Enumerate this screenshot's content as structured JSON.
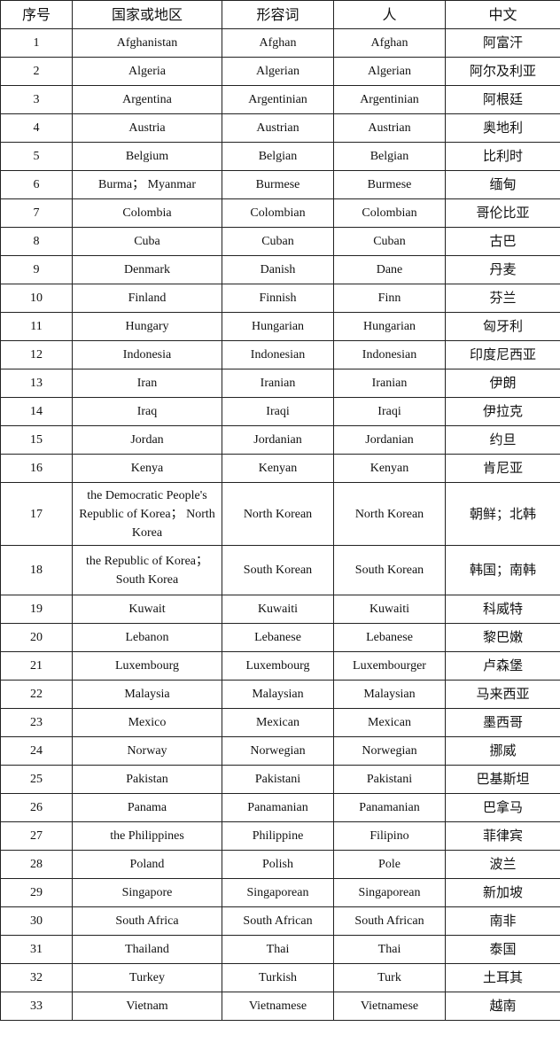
{
  "headers": [
    "序号",
    "国家或地区",
    "形容词",
    "人",
    "中文"
  ],
  "rows": [
    [
      "1",
      "Afghanistan",
      "Afghan",
      "Afghan",
      "阿富汗"
    ],
    [
      "2",
      "Algeria",
      "Algerian",
      "Algerian",
      "阿尔及利亚"
    ],
    [
      "3",
      "Argentina",
      "Argentinian",
      "Argentinian",
      "阿根廷"
    ],
    [
      "4",
      "Austria",
      "Austrian",
      "Austrian",
      "奥地利"
    ],
    [
      "5",
      "Belgium",
      "Belgian",
      "Belgian",
      "比利时"
    ],
    [
      "6",
      "Burma； Myanmar",
      "Burmese",
      "Burmese",
      "缅甸"
    ],
    [
      "7",
      "Colombia",
      "Colombian",
      "Colombian",
      "哥伦比亚"
    ],
    [
      "8",
      "Cuba",
      "Cuban",
      "Cuban",
      "古巴"
    ],
    [
      "9",
      "Denmark",
      "Danish",
      "Dane",
      "丹麦"
    ],
    [
      "10",
      "Finland",
      "Finnish",
      "Finn",
      "芬兰"
    ],
    [
      "11",
      "Hungary",
      "Hungarian",
      "Hungarian",
      "匈牙利"
    ],
    [
      "12",
      "Indonesia",
      "Indonesian",
      "Indonesian",
      "印度尼西亚"
    ],
    [
      "13",
      "Iran",
      "Iranian",
      "Iranian",
      "伊朗"
    ],
    [
      "14",
      "Iraq",
      "Iraqi",
      "Iraqi",
      "伊拉克"
    ],
    [
      "15",
      "Jordan",
      "Jordanian",
      "Jordanian",
      "约旦"
    ],
    [
      "16",
      "Kenya",
      "Kenyan",
      "Kenyan",
      "肯尼亚"
    ],
    [
      "17",
      "the Democratic People's Republic of Korea； North Korea",
      "North Korean",
      "North Korean",
      "朝鲜；北韩"
    ],
    [
      "18",
      "the Republic of Korea； South Korea",
      "South Korean",
      "South Korean",
      "韩国；南韩"
    ],
    [
      "19",
      "Kuwait",
      "Kuwaiti",
      "Kuwaiti",
      "科威特"
    ],
    [
      "20",
      "Lebanon",
      "Lebanese",
      "Lebanese",
      "黎巴嫩"
    ],
    [
      "21",
      "Luxembourg",
      "Luxembourg",
      "Luxembourger",
      "卢森堡"
    ],
    [
      "22",
      "Malaysia",
      "Malaysian",
      "Malaysian",
      "马来西亚"
    ],
    [
      "23",
      "Mexico",
      "Mexican",
      "Mexican",
      "墨西哥"
    ],
    [
      "24",
      "Norway",
      "Norwegian",
      "Norwegian",
      "挪威"
    ],
    [
      "25",
      "Pakistan",
      "Pakistani",
      "Pakistani",
      "巴基斯坦"
    ],
    [
      "26",
      "Panama",
      "Panamanian",
      "Panamanian",
      "巴拿马"
    ],
    [
      "27",
      "the Philippines",
      "Philippine",
      "Filipino",
      "菲律宾"
    ],
    [
      "28",
      "Poland",
      "Polish",
      "Pole",
      "波兰"
    ],
    [
      "29",
      "Singapore",
      "Singaporean",
      "Singaporean",
      "新加坡"
    ],
    [
      "30",
      "South Africa",
      "South African",
      "South African",
      "南非"
    ],
    [
      "31",
      "Thailand",
      "Thai",
      "Thai",
      "泰国"
    ],
    [
      "32",
      "Turkey",
      "Turkish",
      "Turk",
      "土耳其"
    ],
    [
      "33",
      "Vietnam",
      "Vietnamese",
      "Vietnamese",
      "越南"
    ]
  ]
}
